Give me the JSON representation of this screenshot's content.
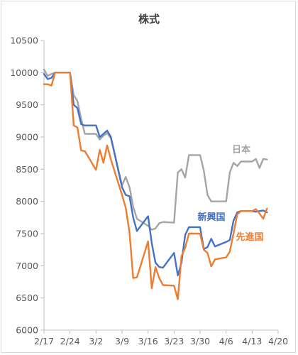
{
  "chart_data": {
    "type": "line",
    "title": "株式",
    "xlabel": "",
    "ylabel": "",
    "ylim": [
      6000,
      10500
    ],
    "y_ticks": [
      6000,
      6500,
      7000,
      7500,
      8000,
      8500,
      9000,
      9500,
      10000,
      10500
    ],
    "x_ticks": [
      "2/17",
      "2/24",
      "3/2",
      "3/9",
      "3/16",
      "3/23",
      "3/30",
      "4/6",
      "4/13",
      "4/20"
    ],
    "x_tick_day_index": [
      0,
      7,
      14,
      21,
      28,
      35,
      42,
      49,
      56,
      63
    ],
    "grid": false,
    "legend": "inline labels next to lines",
    "colors": {
      "日本": "#a5a5a5",
      "新興国": "#4472c4",
      "先進国": "#ed7d31"
    },
    "series": [
      {
        "name": "日本",
        "x": [
          0,
          1,
          2,
          3,
          4,
          7,
          8,
          9,
          10,
          11,
          14,
          15,
          16,
          17,
          18,
          21,
          22,
          23,
          24,
          25,
          28,
          29,
          30,
          31,
          32,
          35,
          36,
          37,
          38,
          39,
          42,
          43,
          44,
          45,
          46,
          49,
          50,
          51,
          52,
          53,
          56,
          57,
          58,
          59,
          60
        ],
        "values": [
          10050,
          9950,
          9980,
          10000,
          10000,
          10000,
          9650,
          9560,
          9280,
          9050,
          9050,
          8960,
          9020,
          9060,
          8980,
          8250,
          8380,
          8220,
          7920,
          7730,
          7620,
          7560,
          7580,
          7660,
          7680,
          7670,
          8450,
          8500,
          8370,
          8720,
          8720,
          8480,
          8100,
          8000,
          8000,
          8000,
          8450,
          8600,
          8550,
          8620,
          8620,
          8660,
          8520,
          8660,
          8650
        ]
      },
      {
        "name": "新興国",
        "x": [
          0,
          1,
          2,
          3,
          4,
          7,
          8,
          9,
          10,
          11,
          14,
          15,
          16,
          17,
          18,
          21,
          22,
          23,
          24,
          25,
          28,
          29,
          30,
          31,
          32,
          35,
          36,
          37,
          38,
          39,
          42,
          43,
          44,
          45,
          46,
          49,
          50,
          51,
          52,
          53,
          56,
          57,
          58,
          59,
          60
        ],
        "values": [
          9980,
          9900,
          9920,
          10000,
          10000,
          10000,
          9500,
          9450,
          9200,
          9180,
          9180,
          9000,
          9050,
          9100,
          9000,
          8220,
          8100,
          8080,
          7750,
          7540,
          7770,
          7350,
          7050,
          6980,
          6970,
          7200,
          6850,
          7050,
          7480,
          7600,
          7600,
          7260,
          7290,
          7420,
          7300,
          7370,
          7400,
          7700,
          7830,
          7850,
          7850,
          7840,
          7850,
          7860,
          7830
        ]
      },
      {
        "name": "先進国",
        "x": [
          0,
          1,
          2,
          3,
          4,
          7,
          8,
          9,
          10,
          11,
          14,
          15,
          16,
          17,
          18,
          21,
          22,
          23,
          24,
          25,
          28,
          29,
          30,
          31,
          32,
          35,
          36,
          37,
          38,
          39,
          42,
          43,
          44,
          45,
          46,
          49,
          50,
          51,
          52,
          53,
          56,
          57,
          58,
          59,
          60
        ],
        "values": [
          9820,
          9820,
          9800,
          10000,
          10000,
          10000,
          9180,
          9150,
          8790,
          8780,
          8490,
          8800,
          8600,
          8870,
          8650,
          8100,
          7900,
          7520,
          6810,
          6820,
          7380,
          6650,
          6980,
          6810,
          6700,
          6690,
          6480,
          7150,
          7280,
          7500,
          7500,
          7250,
          7200,
          6990,
          7100,
          7130,
          7220,
          7500,
          7800,
          7850,
          7850,
          7880,
          7810,
          7730,
          7890
        ]
      }
    ],
    "annotations": [
      "日本",
      "新興国",
      "先進国"
    ]
  }
}
